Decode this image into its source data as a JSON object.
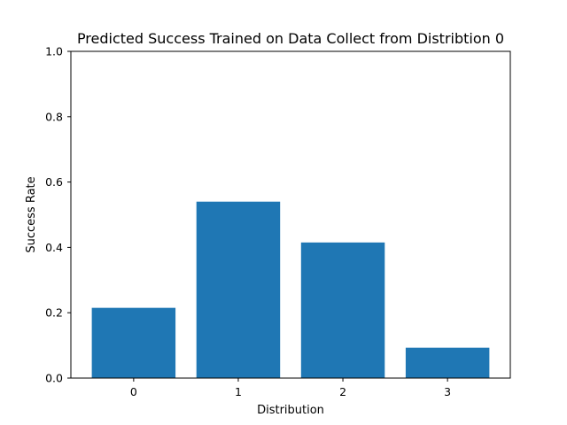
{
  "chart_data": {
    "type": "bar",
    "title": "Predicted Success Trained on Data Collect from Distribtion 0",
    "xlabel": "Distribution",
    "ylabel": "Success Rate",
    "categories": [
      "0",
      "1",
      "2",
      "3"
    ],
    "values": [
      0.215,
      0.54,
      0.415,
      0.093
    ],
    "ylim": [
      0,
      1
    ],
    "yticks": [
      "0.0",
      "0.2",
      "0.4",
      "0.6",
      "0.8",
      "1.0"
    ],
    "bar_color": "#1f77b4",
    "grid": false,
    "legend": "none"
  }
}
